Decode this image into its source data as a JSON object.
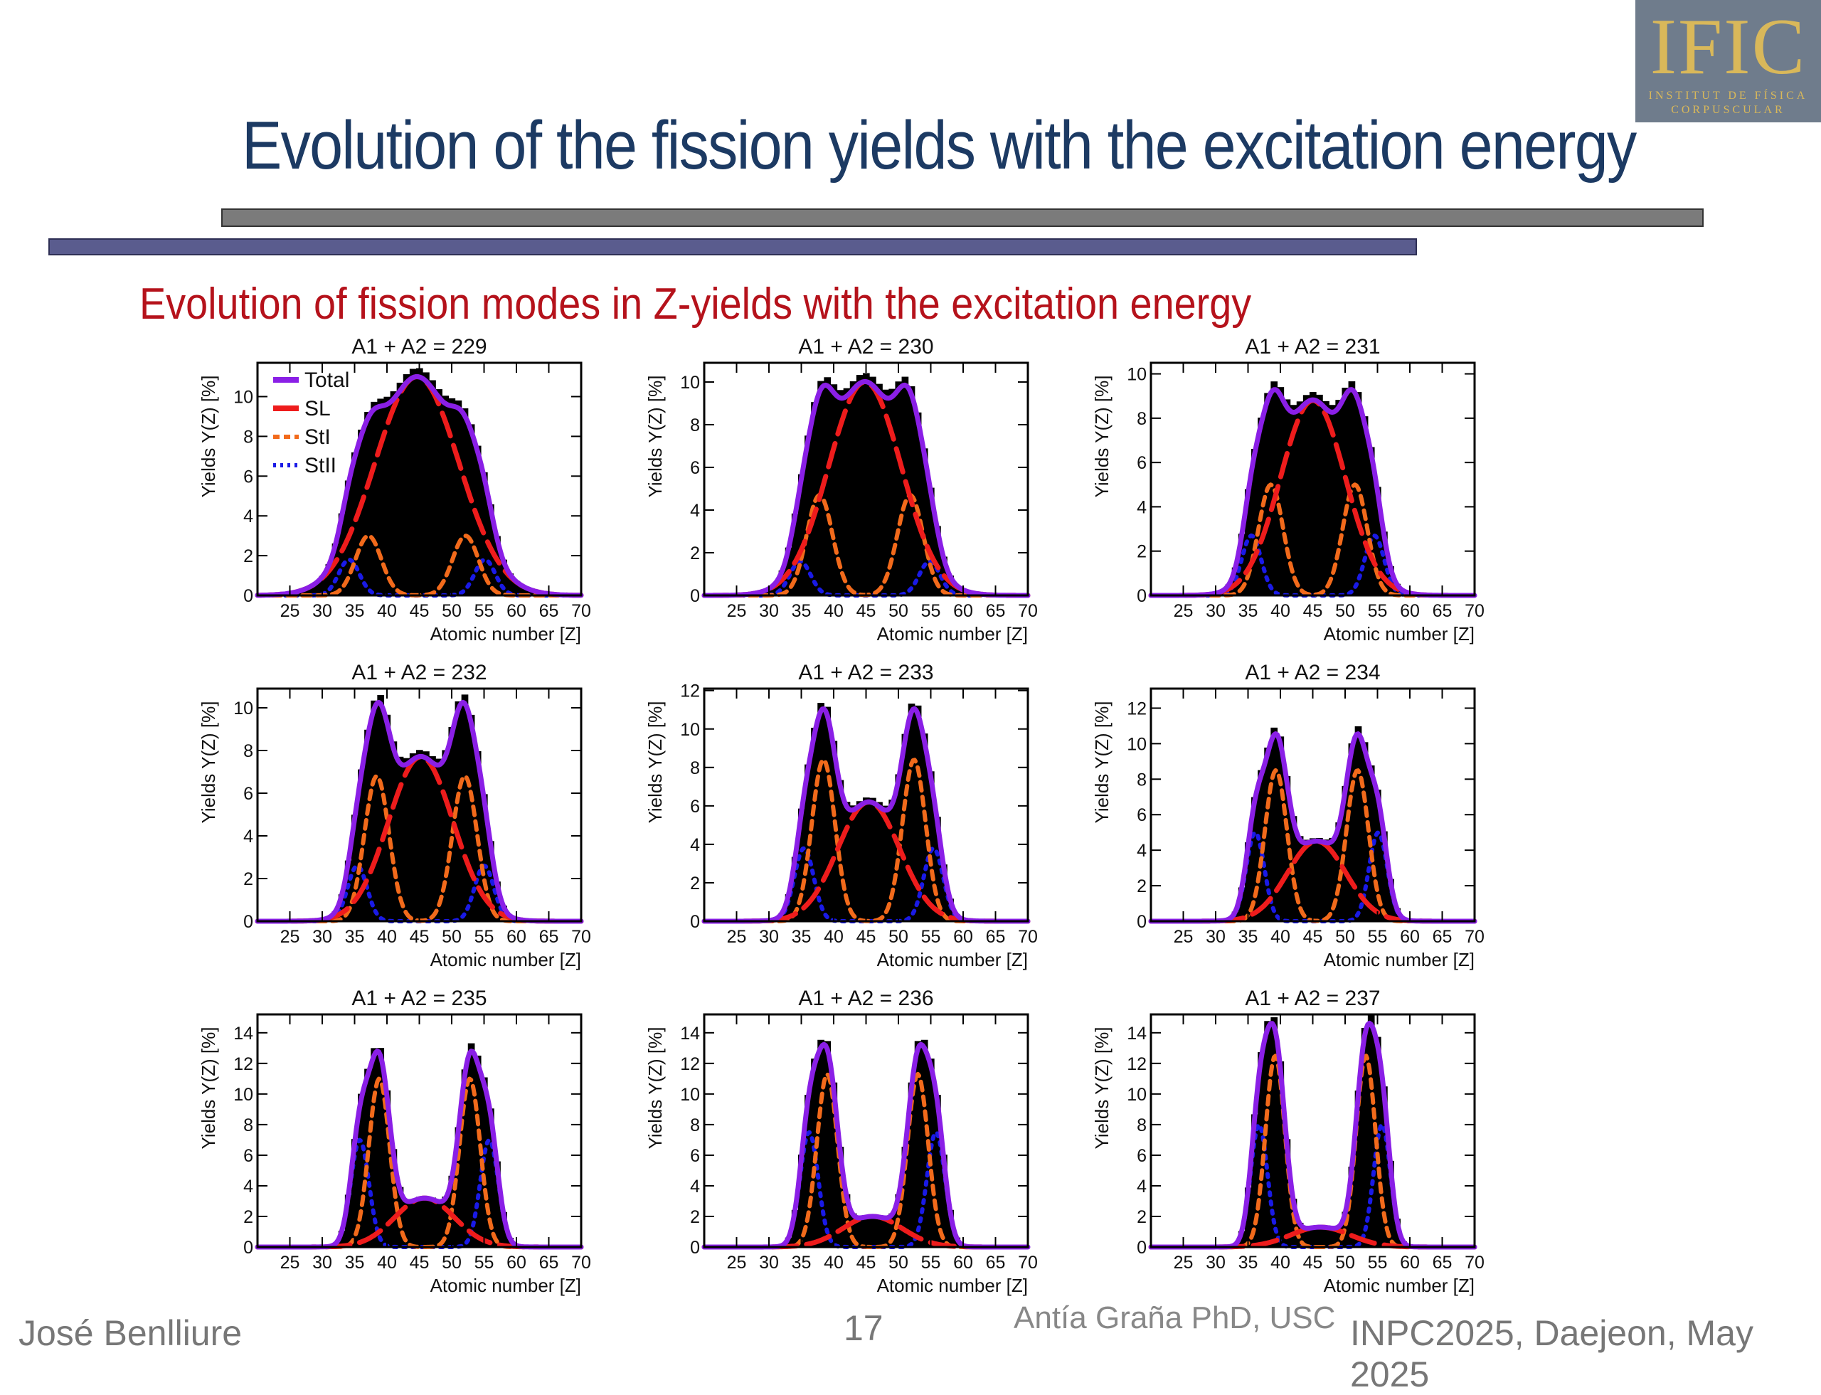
{
  "slide": {
    "title": "Evolution of the fission yields with the excitation energy",
    "subtitle": "Evolution of fission modes in Z-yields with the excitation energy",
    "logo_text": "IFIC",
    "logo_sub1": "INSTITUT DE FÍSICA",
    "logo_sub2": "CORPUSCULAR",
    "footer_author": "José Benlliure",
    "footer_page": "17",
    "footer_credit": "Antía Graña PhD, USC",
    "footer_event": "INPC2025, Daejeon, May 2025"
  },
  "colors": {
    "title": "#1c3a63",
    "subtitle": "#b5121b",
    "total": "#8a1fe6",
    "sl": "#ee1c1c",
    "sti": "#f26a1b",
    "stii": "#1a1ae6",
    "histogram": "#000000"
  },
  "chart_data": [
    {
      "type": "line",
      "title": "A1 + A2 = 229",
      "A": 229,
      "xlabel": "Atomic number [Z]",
      "ylabel": "Yields Y(Z) [%]",
      "xlim": [
        20,
        70
      ],
      "ylim": [
        0,
        11.7
      ],
      "yticks": [
        0,
        2,
        4,
        6,
        8,
        10
      ],
      "xticks": [
        25,
        30,
        35,
        40,
        45,
        50,
        55,
        60,
        65,
        70
      ],
      "legend": [
        "Total",
        "SL",
        "StI",
        "StII"
      ],
      "modes": {
        "SL": {
          "amp": 11,
          "sigma": 6.5
        },
        "StI": {
          "amp": 3.0,
          "sigma": 2.0,
          "center_offset": 7.5
        },
        "StII": {
          "amp": 1.8,
          "sigma": 1.6,
          "center_offset": 10.5
        }
      }
    },
    {
      "type": "line",
      "title": "A1 + A2 = 230",
      "A": 230,
      "xlabel": "Atomic number [Z]",
      "ylabel": "Yields Y(Z) [%]",
      "xlim": [
        20,
        70
      ],
      "ylim": [
        0,
        10.9
      ],
      "yticks": [
        0,
        2,
        4,
        6,
        8,
        10
      ],
      "xticks": [
        25,
        30,
        35,
        40,
        45,
        50,
        55,
        60,
        65,
        70
      ],
      "modes": {
        "SL": {
          "amp": 10,
          "sigma": 5.6
        },
        "StI": {
          "amp": 4.7,
          "sigma": 2.0,
          "center_offset": 7.0
        },
        "StII": {
          "amp": 1.6,
          "sigma": 1.6,
          "center_offset": 10.0
        }
      }
    },
    {
      "type": "line",
      "title": "A1 + A2 = 231",
      "A": 231,
      "xlabel": "Atomic number [Z]",
      "ylabel": "Yields Y(Z) [%]",
      "xlim": [
        20,
        70
      ],
      "ylim": [
        0,
        10.5
      ],
      "yticks": [
        0,
        2,
        4,
        6,
        8,
        10
      ],
      "xticks": [
        25,
        30,
        35,
        40,
        45,
        50,
        55,
        60,
        65,
        70
      ],
      "modes": {
        "SL": {
          "amp": 8.8,
          "sigma": 5.0
        },
        "StI": {
          "amp": 5.0,
          "sigma": 1.9,
          "center_offset": 6.5
        },
        "StII": {
          "amp": 2.7,
          "sigma": 1.5,
          "center_offset": 9.5
        }
      }
    },
    {
      "type": "line",
      "title": "A1 + A2 = 232",
      "A": 232,
      "xlabel": "Atomic number [Z]",
      "ylabel": "Yields Y(Z) [%]",
      "xlim": [
        20,
        70
      ],
      "ylim": [
        0,
        10.9
      ],
      "yticks": [
        0,
        2,
        4,
        6,
        8,
        10
      ],
      "xticks": [
        25,
        30,
        35,
        40,
        45,
        50,
        55,
        60,
        65,
        70
      ],
      "modes": {
        "SL": {
          "amp": 7.7,
          "sigma": 5.0
        },
        "StI": {
          "amp": 6.8,
          "sigma": 1.9,
          "center_offset": 6.8
        },
        "StII": {
          "amp": 2.6,
          "sigma": 1.5,
          "center_offset": 9.8
        }
      }
    },
    {
      "type": "line",
      "title": "A1 + A2 = 233",
      "A": 233,
      "xlabel": "Atomic number [Z]",
      "ylabel": "Yields Y(Z) [%]",
      "xlim": [
        20,
        70
      ],
      "ylim": [
        0,
        12.1
      ],
      "yticks": [
        0,
        2,
        4,
        6,
        8,
        10,
        12
      ],
      "xticks": [
        25,
        30,
        35,
        40,
        45,
        50,
        55,
        60,
        65,
        70
      ],
      "modes": {
        "SL": {
          "amp": 6.2,
          "sigma": 4.8
        },
        "StI": {
          "amp": 8.4,
          "sigma": 1.8,
          "center_offset": 7.0
        },
        "StII": {
          "amp": 3.8,
          "sigma": 1.5,
          "center_offset": 10.0
        }
      }
    },
    {
      "type": "line",
      "title": "A1 + A2 = 234",
      "A": 234,
      "xlabel": "Atomic number [Z]",
      "ylabel": "Yields Y(Z) [%]",
      "xlim": [
        20,
        70
      ],
      "ylim": [
        0,
        13.1
      ],
      "yticks": [
        0,
        2,
        4,
        6,
        8,
        10,
        12
      ],
      "xticks": [
        25,
        30,
        35,
        40,
        45,
        50,
        55,
        60,
        65,
        70
      ],
      "modes": {
        "SL": {
          "amp": 4.5,
          "sigma": 4.5
        },
        "StI": {
          "amp": 8.5,
          "sigma": 1.7,
          "center_offset": 6.3
        },
        "StII": {
          "amp": 5.0,
          "sigma": 1.4,
          "center_offset": 9.5
        }
      }
    },
    {
      "type": "line",
      "title": "A1 + A2 = 235",
      "A": 235,
      "xlabel": "Atomic number [Z]",
      "ylabel": "Yields Y(Z) [%]",
      "xlim": [
        20,
        70
      ],
      "ylim": [
        0,
        15.2
      ],
      "yticks": [
        0,
        2,
        4,
        6,
        8,
        10,
        12,
        14
      ],
      "xticks": [
        25,
        30,
        35,
        40,
        45,
        50,
        55,
        60,
        65,
        70
      ],
      "modes": {
        "SL": {
          "amp": 3.2,
          "sigma": 4.6
        },
        "StI": {
          "amp": 11.0,
          "sigma": 1.6,
          "center_offset": 7.0
        },
        "StII": {
          "amp": 7.0,
          "sigma": 1.4,
          "center_offset": 10.0
        }
      }
    },
    {
      "type": "line",
      "title": "A1 + A2 = 236",
      "A": 236,
      "xlabel": "Atomic number [Z]",
      "ylabel": "Yields Y(Z) [%]",
      "xlim": [
        20,
        70
      ],
      "ylim": [
        0,
        15.2
      ],
      "yticks": [
        0,
        2,
        4,
        6,
        8,
        10,
        12,
        14
      ],
      "xticks": [
        25,
        30,
        35,
        40,
        45,
        50,
        55,
        60,
        65,
        70
      ],
      "modes": {
        "SL": {
          "amp": 2.0,
          "sigma": 4.6
        },
        "StI": {
          "amp": 11.3,
          "sigma": 1.6,
          "center_offset": 7.0
        },
        "StII": {
          "amp": 7.5,
          "sigma": 1.4,
          "center_offset": 9.8
        }
      }
    },
    {
      "type": "line",
      "title": "A1 + A2 = 237",
      "A": 237,
      "xlabel": "Atomic number [Z]",
      "ylabel": "Yields Y(Z) [%]",
      "xlim": [
        20,
        70
      ],
      "ylim": [
        0,
        15.2
      ],
      "yticks": [
        0,
        2,
        4,
        6,
        8,
        10,
        12,
        14
      ],
      "xticks": [
        25,
        30,
        35,
        40,
        45,
        50,
        55,
        60,
        65,
        70
      ],
      "modes": {
        "SL": {
          "amp": 1.3,
          "sigma": 4.6
        },
        "StI": {
          "amp": 12.5,
          "sigma": 1.5,
          "center_offset": 7.0
        },
        "StII": {
          "amp": 8.0,
          "sigma": 1.3,
          "center_offset": 9.5
        }
      }
    }
  ]
}
